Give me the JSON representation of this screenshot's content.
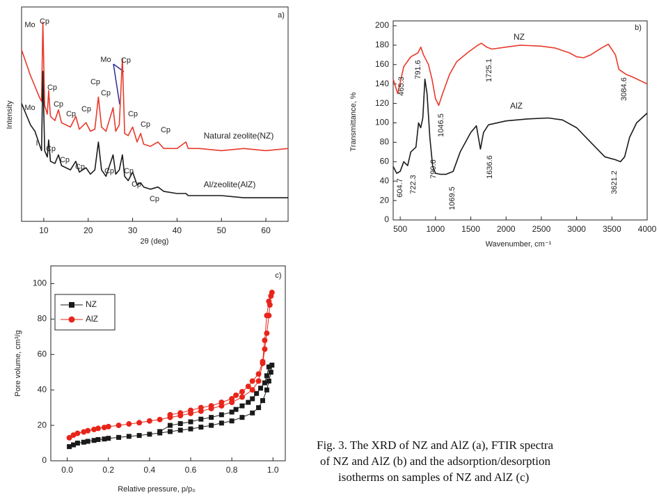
{
  "chart_data": [
    {
      "type": "line",
      "xlabel": "2θ (deg)",
      "ylabel": "Intensity",
      "xlim": [
        5,
        65
      ],
      "ylim": [
        0,
        100
      ],
      "xticks": [
        10,
        20,
        30,
        40,
        50,
        60
      ],
      "legend": "inline",
      "x": [
        5,
        6,
        7,
        8,
        9,
        9.5,
        9.8,
        10.2,
        10.8,
        11.1,
        11.5,
        12.5,
        13.3,
        14,
        15,
        16,
        17.2,
        18,
        19.5,
        20.5,
        21.5,
        22.3,
        23,
        24,
        25.6,
        26.2,
        27,
        27.7,
        28.2,
        29,
        30,
        31,
        31.8,
        32.5,
        34,
        35.7,
        37,
        40,
        42,
        42.5,
        45,
        50,
        55,
        60,
        65
      ],
      "series": [
        {
          "name": "Natural zeolite(NZ)",
          "color": "#e8392a",
          "values": [
            80,
            74,
            68,
            63,
            58,
            56,
            93,
            54,
            50,
            61,
            49,
            47,
            52,
            46,
            45,
            44,
            49,
            43,
            46,
            42,
            43,
            58,
            44,
            42,
            53,
            42,
            45,
            76,
            41,
            40,
            44,
            37,
            41,
            36,
            35,
            37,
            34,
            34,
            37,
            34,
            34,
            33,
            34,
            33,
            34
          ]
        },
        {
          "name": "Al/zeolite(AlZ)",
          "color": "#1a1a1a",
          "values": [
            55,
            50,
            45,
            42,
            36,
            33,
            70,
            33,
            30,
            38,
            28,
            27,
            31,
            26,
            25,
            24,
            28,
            23,
            25,
            22,
            24,
            37,
            24,
            21,
            31,
            22,
            24,
            31,
            21,
            19,
            23,
            17,
            18,
            16,
            15,
            16,
            14,
            13,
            13,
            12,
            12,
            12,
            11,
            11,
            11
          ]
        }
      ],
      "annotations": [
        "a)",
        "Mo",
        "Cp",
        "Mo",
        "Cp",
        "Cp",
        "Cp",
        "Cp",
        "Cp",
        "Cp",
        "Cp",
        "Cp",
        "Cp",
        "Cp",
        "Mo",
        "I",
        "Cp",
        "Cp",
        "Cp",
        "Cp",
        "Cp",
        "Cp",
        "Cp"
      ]
    },
    {
      "type": "line",
      "xlabel": "Wavenumber, cm⁻¹",
      "ylabel": "Transmittance, %",
      "xlim": [
        400,
        4000
      ],
      "ylim": [
        0,
        205
      ],
      "xticks": [
        500,
        1000,
        1500,
        2000,
        2500,
        3000,
        3500,
        4000
      ],
      "yticks": [
        0,
        20,
        40,
        60,
        80,
        100,
        120,
        140,
        160,
        180,
        200
      ],
      "legend": "inline",
      "series": [
        {
          "name": "NZ",
          "color": "#e8392a",
          "x": [
            400,
            465,
            550,
            650,
            750,
            791.6,
            830,
            900,
            950,
            1000,
            1046.5,
            1100,
            1200,
            1300,
            1450,
            1600,
            1650,
            1725.1,
            1800,
            2000,
            2200,
            2500,
            2700,
            2900,
            3000,
            3100,
            3200,
            3350,
            3450,
            3550,
            3600,
            3700,
            3800,
            4000
          ],
          "values": [
            145,
            130,
            158,
            168,
            172,
            178,
            170,
            160,
            145,
            125,
            118,
            130,
            150,
            163,
            172,
            180,
            182,
            178,
            176,
            178,
            180,
            179,
            177,
            172,
            168,
            167,
            170,
            177,
            181,
            170,
            155,
            150,
            147,
            140
          ]
        },
        {
          "name": "AlZ",
          "color": "#1a1a1a",
          "x": [
            400,
            450,
            500,
            550,
            604.7,
            650,
            722.3,
            760,
            790.6,
            820,
            850,
            880,
            920,
            960,
            1000,
            1069.5,
            1150,
            1250,
            1350,
            1500,
            1580,
            1636.6,
            1680,
            1750,
            2000,
            2300,
            2600,
            2800,
            3000,
            3200,
            3400,
            3550,
            3621.2,
            3680,
            3750,
            3850,
            4000
          ],
          "values": [
            55,
            48,
            50,
            60,
            56,
            70,
            75,
            100,
            95,
            105,
            145,
            130,
            85,
            55,
            48,
            47,
            47,
            50,
            70,
            90,
            97,
            73,
            90,
            98,
            102,
            104,
            105,
            103,
            95,
            80,
            65,
            62,
            60,
            65,
            85,
            100,
            110
          ]
        }
      ],
      "annotations": [
        "b)",
        "465.3",
        "604.7",
        "722.3",
        "790.6",
        "791.6",
        "1046.5",
        "1069.5",
        "1636.6",
        "1725.1",
        "3084.6",
        "3621.2"
      ]
    },
    {
      "type": "line-marker",
      "xlabel": "Relative pressure, p/p₀",
      "ylabel": "Pore volume, cm³/g",
      "xlim": [
        -0.08,
        1.06
      ],
      "ylim": [
        0,
        110
      ],
      "xticks": [
        {
          "value": 0,
          "label": "0.0"
        },
        0.2,
        0.4,
        0.6,
        0.8,
        {
          "value": 1,
          "label": "1.0"
        }
      ],
      "yticks": [
        0,
        20,
        40,
        60,
        80,
        100
      ],
      "legend": "upper left",
      "series": [
        {
          "name": "NZ",
          "color": "#1a1a1a",
          "marker": "square",
          "x": [
            0.01,
            0.03,
            0.05,
            0.08,
            0.1,
            0.13,
            0.15,
            0.18,
            0.2,
            0.25,
            0.3,
            0.35,
            0.4,
            0.45,
            0.5,
            0.55,
            0.6,
            0.65,
            0.7,
            0.75,
            0.8,
            0.85,
            0.9,
            0.93,
            0.95,
            0.97,
            0.98,
            0.99,
            0.995,
            0.98,
            0.97,
            0.96,
            0.94,
            0.92,
            0.9,
            0.88,
            0.85,
            0.82,
            0.8,
            0.75,
            0.7,
            0.65,
            0.6,
            0.55,
            0.5,
            0.45
          ],
          "values": [
            8,
            9,
            10,
            10.5,
            11,
            11.5,
            12,
            12.3,
            12.7,
            13.2,
            13.8,
            14.3,
            15,
            15.7,
            16.5,
            17.3,
            18,
            19,
            20,
            21.3,
            22.5,
            24.5,
            27,
            30,
            34,
            40,
            45,
            50,
            54,
            53,
            48,
            44,
            41,
            38,
            35,
            33,
            31,
            29,
            27.5,
            26,
            24.5,
            23.5,
            22,
            21,
            20,
            16.5
          ]
        },
        {
          "name": "AlZ",
          "color": "#e8251a",
          "marker": "circle",
          "x": [
            0.01,
            0.03,
            0.05,
            0.08,
            0.1,
            0.13,
            0.15,
            0.18,
            0.2,
            0.25,
            0.3,
            0.35,
            0.4,
            0.45,
            0.5,
            0.55,
            0.6,
            0.65,
            0.7,
            0.75,
            0.8,
            0.85,
            0.9,
            0.93,
            0.95,
            0.96,
            0.97,
            0.98,
            0.985,
            0.99,
            0.995,
            0.98,
            0.97,
            0.96,
            0.95,
            0.93,
            0.9,
            0.88,
            0.85,
            0.82,
            0.8,
            0.75,
            0.7,
            0.65,
            0.6,
            0.55,
            0.5
          ],
          "values": [
            13,
            14.5,
            15.5,
            16.3,
            17,
            17.7,
            18.3,
            18.8,
            19.3,
            20,
            20.8,
            21.5,
            22.5,
            23.3,
            24.5,
            25.5,
            26.8,
            28,
            29.5,
            31,
            33,
            36,
            40,
            45,
            55,
            63,
            72,
            82,
            88,
            93,
            95,
            90,
            82,
            68,
            56,
            49,
            45,
            42,
            39,
            37,
            35,
            33,
            31,
            30,
            28.5,
            27,
            26
          ]
        }
      ],
      "annotations": [
        "c)"
      ]
    }
  ],
  "caption": [
    "Fig. 3. The XRD of NZ and AlZ (a), FTIR spectra",
    "of NZ and AlZ (b) and the adsorption/desorption",
    "isotherms on samples of NZ and AlZ (c)"
  ]
}
